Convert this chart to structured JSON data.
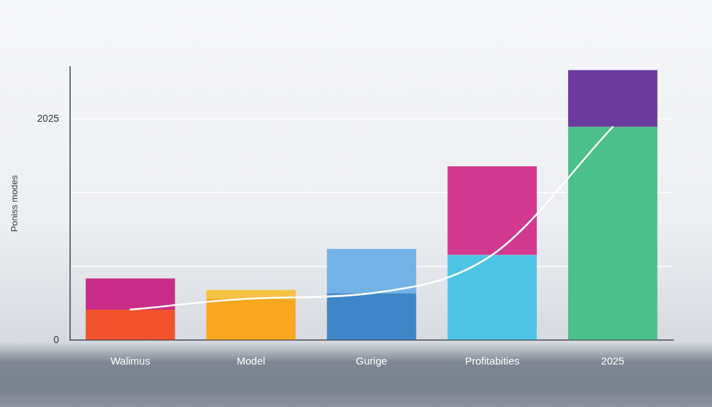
{
  "chart_data": {
    "type": "bar",
    "stacked": true,
    "ylabel": "Poniss modes",
    "categories": [
      "Walimus",
      "Model",
      "Gurige",
      "Profitabities",
      "2025"
    ],
    "series": [
      {
        "values": [
          280,
          380,
          430,
          780,
          1950
        ],
        "colors": [
          "#f2522e",
          "#f7a81e",
          "#3d86c8",
          "#4ec4e4",
          "#4cc08a"
        ]
      },
      {
        "values": [
          285,
          80,
          405,
          810,
          520
        ],
        "colors": [
          "#c92c88",
          "#f6c243",
          "#72b2e6",
          "#d33a8f",
          "#6a3a9e"
        ]
      },
      {
        "type": "line",
        "color": "#ffffff",
        "values": [
          280,
          380,
          430,
          780,
          1950
        ]
      }
    ],
    "ylim": [
      0,
      2500
    ],
    "yticks": [
      0,
      {
        "value": 675,
        "label": null
      },
      {
        "value": 1350,
        "label": null
      },
      2025
    ],
    "grid": "y",
    "marker": "none"
  }
}
